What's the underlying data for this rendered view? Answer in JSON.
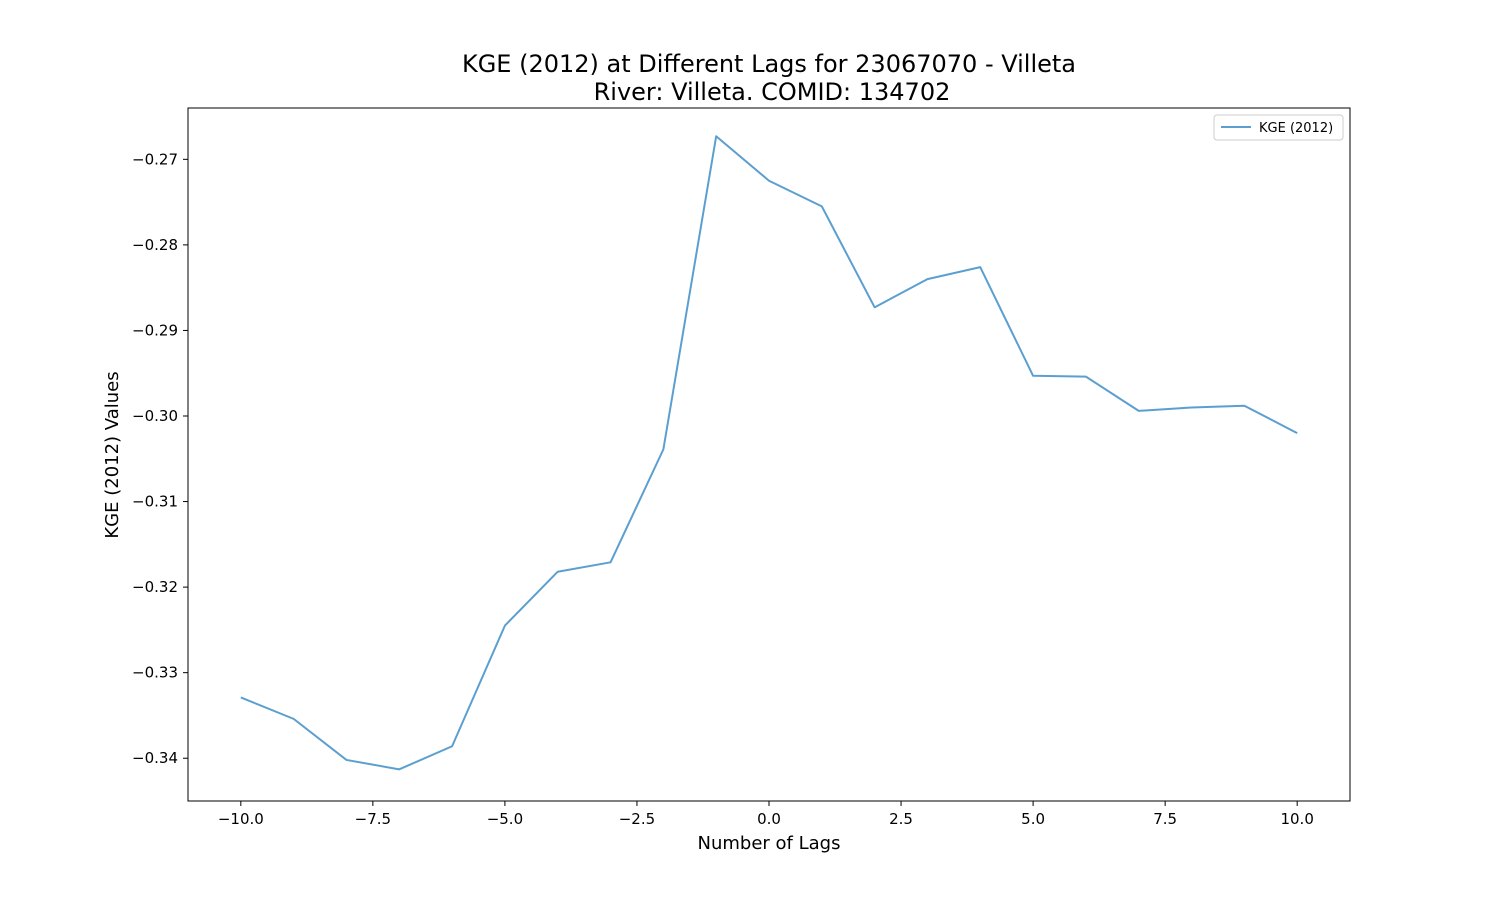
{
  "chart_data": {
    "type": "line",
    "title": "KGE (2012) at Different Lags for 23067070 - Villeta",
    "subtitle": "River: Villeta. COMID: 134702",
    "xlabel": "Number of Lags",
    "ylabel": "KGE (2012) Values",
    "xlim": [
      -11.0,
      11.0
    ],
    "ylim": [
      -0.345,
      -0.264
    ],
    "xticks": [
      -10.0,
      -7.5,
      -5.0,
      -2.5,
      0.0,
      2.5,
      5.0,
      7.5,
      10.0
    ],
    "xtick_labels": [
      "−10.0",
      "−7.5",
      "−5.0",
      "−2.5",
      "0.0",
      "2.5",
      "5.0",
      "7.5",
      "10.0"
    ],
    "yticks": [
      -0.27,
      -0.28,
      -0.29,
      -0.3,
      -0.31,
      -0.32,
      -0.33,
      -0.34
    ],
    "ytick_labels": [
      "−0.27",
      "−0.28",
      "−0.29",
      "−0.30",
      "−0.31",
      "−0.32",
      "−0.33",
      "−0.34"
    ],
    "grid": false,
    "legend_position": "top-right",
    "series": [
      {
        "name": "KGE (2012)",
        "color": "#5b9fd0",
        "x": [
          -10,
          -9,
          -8,
          -7,
          -6,
          -5,
          -4,
          -3,
          -2,
          -1,
          0,
          1,
          2,
          3,
          4,
          5,
          6,
          7,
          8,
          9,
          10
        ],
        "y": [
          -0.3329,
          -0.3354,
          -0.3402,
          -0.3413,
          -0.3386,
          -0.3245,
          -0.3182,
          -0.3171,
          -0.3039,
          -0.2673,
          -0.2725,
          -0.2755,
          -0.2873,
          -0.284,
          -0.2826,
          -0.2953,
          -0.2954,
          -0.2994,
          -0.299,
          -0.2988,
          -0.302
        ]
      }
    ]
  }
}
